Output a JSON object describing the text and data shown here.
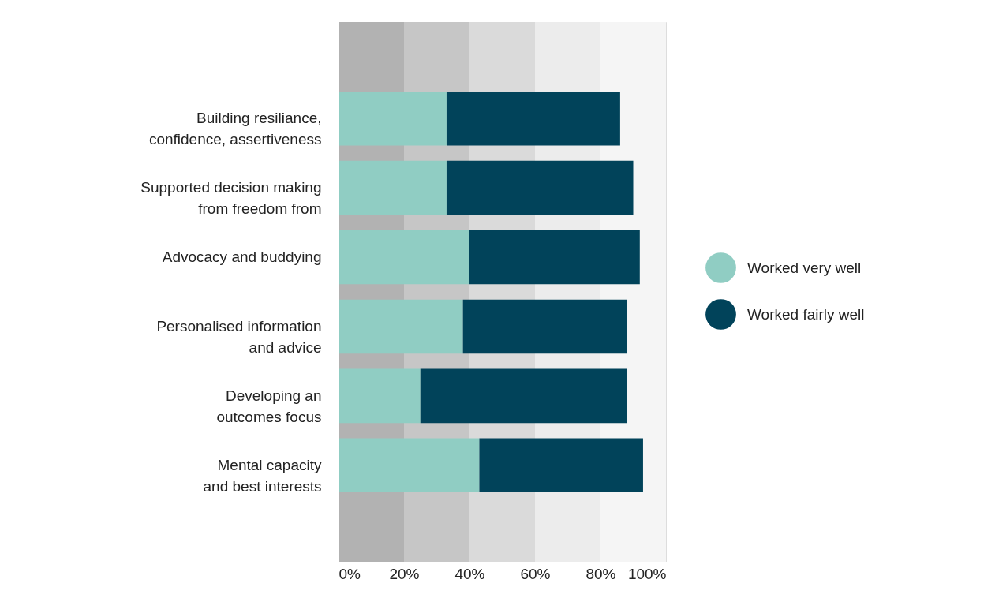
{
  "chart_data": {
    "type": "bar",
    "orientation": "horizontal",
    "stacked": true,
    "categories": [
      "Building resiliance,\nconfidence, assertiveness",
      "Supported decision making\nfrom freedom from",
      "Advocacy and buddying",
      "Personalised information\nand advice",
      "Developing an\noutcomes focus",
      "Mental capacity \nand best interests"
    ],
    "series": [
      {
        "name": "Worked very well",
        "color": "#90cdc3",
        "values": [
          33,
          33,
          40,
          38,
          25,
          43
        ]
      },
      {
        "name": "Worked fairly well",
        "color": "#01435a",
        "values": [
          53,
          57,
          52,
          50,
          63,
          50
        ]
      }
    ],
    "xlim": [
      0,
      100
    ],
    "xticks": [
      {
        "value": 0,
        "label": "0%"
      },
      {
        "value": 20,
        "label": "20%"
      },
      {
        "value": 40,
        "label": "40%"
      },
      {
        "value": 60,
        "label": "60%"
      },
      {
        "value": 80,
        "label": "80%"
      },
      {
        "value": 100,
        "label": "100%"
      }
    ],
    "bands": [
      {
        "axis": "x",
        "from": 0,
        "to": 20,
        "color": "#b2b2b2"
      },
      {
        "axis": "x",
        "from": 20,
        "to": 40,
        "color": "#c6c6c6"
      },
      {
        "axis": "x",
        "from": 40,
        "to": 60,
        "color": "#dadada"
      },
      {
        "axis": "x",
        "from": 60,
        "to": 80,
        "color": "#ececec"
      },
      {
        "axis": "x",
        "from": 80,
        "to": 100,
        "color": "#f5f5f5"
      }
    ],
    "grid": false,
    "legend": "right"
  }
}
